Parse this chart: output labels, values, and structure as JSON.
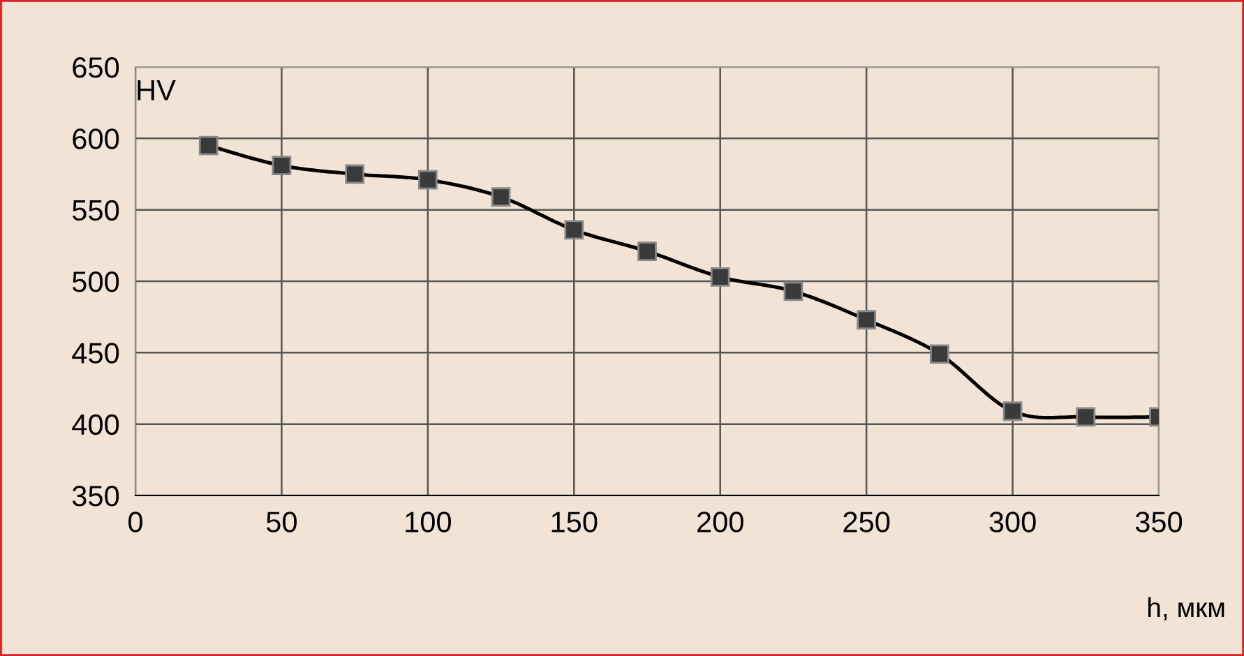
{
  "chart_data": {
    "type": "line",
    "xlabel": "h, мкм",
    "ylabel": "HV",
    "x": [
      25,
      50,
      75,
      100,
      125,
      150,
      175,
      200,
      225,
      250,
      275,
      300,
      325,
      350
    ],
    "series": [
      {
        "color": "#000000",
        "values": [
          595,
          581,
          575,
          571,
          559,
          536,
          521,
          503,
          493,
          473,
          449,
          409,
          405,
          405
        ]
      }
    ],
    "xlim": [
      0,
      350
    ],
    "xticks": [
      0,
      50,
      100,
      150,
      200,
      250,
      300,
      350
    ],
    "ylim": [
      350,
      650
    ],
    "yticks": [
      350,
      400,
      450,
      500,
      550,
      600,
      650
    ],
    "grid": true,
    "marker": "square",
    "line_style": "solid"
  }
}
